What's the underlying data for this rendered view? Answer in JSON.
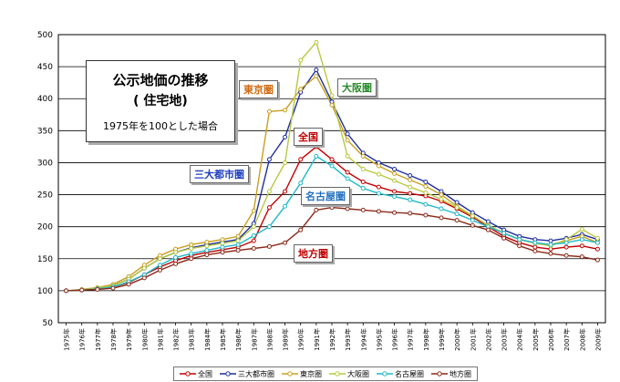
{
  "title_box": {
    "line1": "公示地価の推移",
    "line2": "( 住宅地)",
    "line3": "1975年を100とした場合"
  },
  "annotations": {
    "tokyo": "東京圏",
    "osaka": "大阪圏",
    "zenkoku": "全国",
    "sandai": "三大都市圏",
    "nagoya": "名古屋圏",
    "chiho": "地方圏"
  },
  "colors": {
    "zenkoku": "#c00000",
    "sandai": "#1f2f9f",
    "tokyo": "#c8a020",
    "osaka": "#b8c840",
    "nagoya": "#20b8c8",
    "chiho": "#8b2a1a"
  },
  "chart_data": {
    "type": "line",
    "x": [
      "1975年",
      "1976年",
      "1977年",
      "1978年",
      "1979年",
      "1980年",
      "1981年",
      "1982年",
      "1983年",
      "1984年",
      "1985年",
      "1986年",
      "1987年",
      "1988年",
      "1989年",
      "1990年",
      "1991年",
      "1992年",
      "1993年",
      "1994年",
      "1995年",
      "1996年",
      "1997年",
      "1998年",
      "1999年",
      "2000年",
      "2001年",
      "2002年",
      "2003年",
      "2004年",
      "2005年",
      "2006年",
      "2007年",
      "2008年",
      "2009年"
    ],
    "ylim": [
      50,
      500
    ],
    "yticks": [
      50,
      100,
      150,
      200,
      250,
      300,
      350,
      400,
      450,
      500
    ],
    "grid": true,
    "legend_position": "bottom",
    "series": [
      {
        "name": "全国",
        "key": "zenkoku",
        "values": [
          100,
          101,
          103,
          106,
          113,
          125,
          137,
          147,
          155,
          160,
          164,
          168,
          178,
          230,
          255,
          305,
          325,
          305,
          285,
          270,
          262,
          255,
          252,
          248,
          240,
          228,
          215,
          200,
          185,
          175,
          168,
          165,
          168,
          170,
          165
        ]
      },
      {
        "name": "三大都市圏",
        "key": "sandai",
        "values": [
          100,
          101,
          104,
          108,
          118,
          135,
          150,
          160,
          167,
          172,
          176,
          180,
          205,
          305,
          340,
          410,
          445,
          395,
          345,
          315,
          300,
          290,
          280,
          270,
          255,
          238,
          222,
          208,
          195,
          185,
          180,
          178,
          182,
          188,
          180
        ]
      },
      {
        "name": "東京圏",
        "key": "tokyo",
        "values": [
          100,
          102,
          105,
          110,
          122,
          140,
          155,
          165,
          172,
          176,
          180,
          185,
          225,
          380,
          382,
          415,
          435,
          390,
          335,
          310,
          295,
          283,
          273,
          263,
          250,
          232,
          217,
          202,
          190,
          180,
          175,
          172,
          178,
          185,
          175
        ]
      },
      {
        "name": "大阪圏",
        "key": "osaka",
        "values": [
          100,
          101,
          104,
          108,
          118,
          135,
          150,
          160,
          166,
          170,
          174,
          178,
          200,
          255,
          300,
          460,
          488,
          405,
          310,
          290,
          282,
          272,
          262,
          253,
          243,
          230,
          217,
          202,
          190,
          180,
          174,
          170,
          180,
          196,
          182
        ]
      },
      {
        "name": "名古屋圏",
        "key": "nagoya",
        "values": [
          100,
          101,
          103,
          106,
          114,
          125,
          140,
          152,
          158,
          163,
          168,
          172,
          186,
          200,
          232,
          268,
          310,
          295,
          275,
          260,
          252,
          247,
          242,
          235,
          228,
          220,
          210,
          200,
          190,
          180,
          175,
          172,
          175,
          180,
          175
        ]
      },
      {
        "name": "地方圏",
        "key": "chiho",
        "values": [
          100,
          101,
          102,
          104,
          110,
          120,
          132,
          142,
          150,
          156,
          160,
          163,
          166,
          169,
          175,
          195,
          226,
          230,
          228,
          226,
          224,
          222,
          221,
          218,
          214,
          210,
          202,
          195,
          182,
          170,
          162,
          158,
          155,
          153,
          148
        ]
      }
    ]
  }
}
